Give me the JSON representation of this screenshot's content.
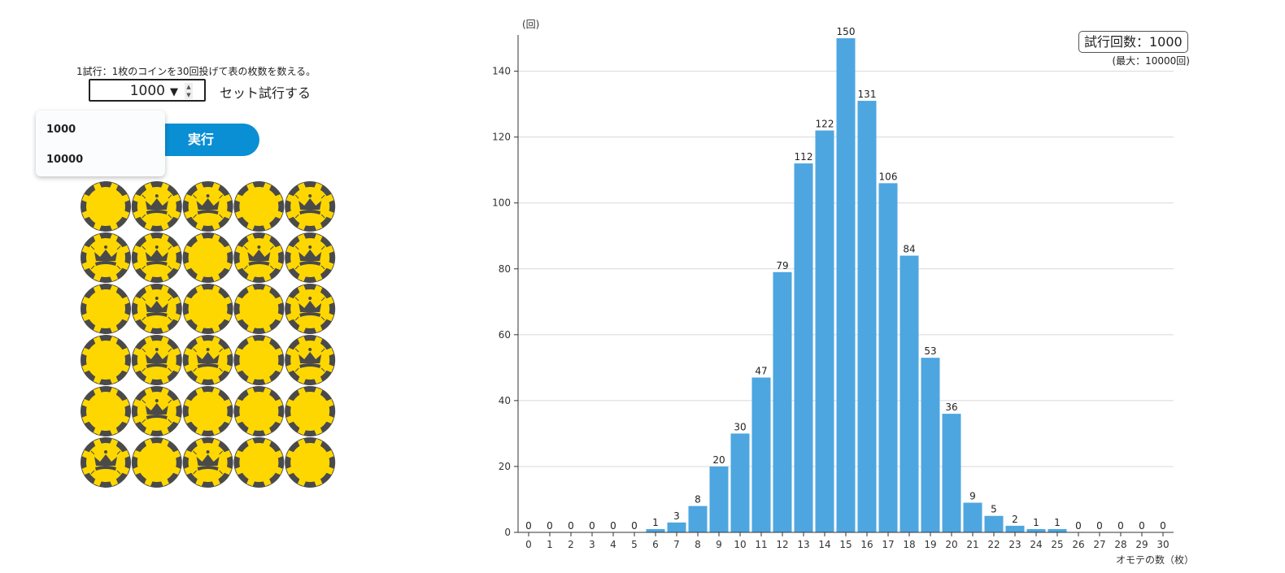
{
  "controls": {
    "description": "1試行：1枚のコインを30回投げて表の枚数を数える。",
    "set_value": "1000",
    "set_suffix": "セット試行する",
    "run_label": "実行",
    "dropdown_options": [
      "1000",
      "10000"
    ]
  },
  "coins": {
    "colors": {
      "face": "#FFD700",
      "rim": "#4a4a4a"
    },
    "rows": [
      [
        "tails",
        "heads",
        "heads",
        "tails",
        "heads"
      ],
      [
        "heads",
        "heads",
        "tails",
        "heads",
        "heads"
      ],
      [
        "tails",
        "heads",
        "tails",
        "tails",
        "heads"
      ],
      [
        "tails",
        "heads",
        "heads",
        "tails",
        "heads"
      ],
      [
        "tails",
        "heads",
        "tails",
        "tails",
        "tails"
      ],
      [
        "heads",
        "tails",
        "heads",
        "tails",
        "tails"
      ]
    ]
  },
  "trial_badge": {
    "label": "試行回数：1000",
    "max_note": "(最大：10000回)"
  },
  "chart_data": {
    "type": "bar",
    "ylabel": "(回)",
    "xlabel": "オモテの数（枚）",
    "categories": [
      "0",
      "1",
      "2",
      "3",
      "4",
      "5",
      "6",
      "7",
      "8",
      "9",
      "10",
      "11",
      "12",
      "13",
      "14",
      "15",
      "16",
      "17",
      "18",
      "19",
      "20",
      "21",
      "22",
      "23",
      "24",
      "25",
      "26",
      "27",
      "28",
      "29",
      "30"
    ],
    "values": [
      0,
      0,
      0,
      0,
      0,
      0,
      1,
      3,
      8,
      20,
      30,
      47,
      79,
      112,
      122,
      150,
      131,
      106,
      84,
      53,
      36,
      9,
      5,
      2,
      1,
      1,
      0,
      0,
      0,
      0,
      0
    ],
    "yticks": [
      0,
      20,
      40,
      60,
      80,
      100,
      120,
      140
    ],
    "ylim": [
      0,
      151
    ],
    "grid": true,
    "bar_color": "#4da6e0",
    "data_labels": true
  }
}
